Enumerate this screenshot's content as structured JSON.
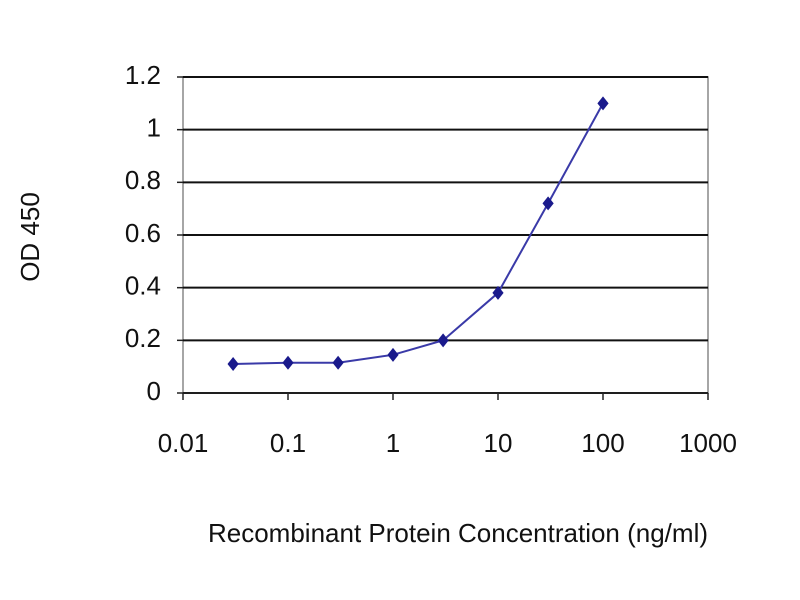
{
  "chart_data": {
    "type": "line",
    "xscale": "log",
    "grid": true,
    "x_label": "Recombinant Protein Concentration (ng/ml)",
    "y_label": "OD 450",
    "x": [
      0.03,
      0.1,
      0.3,
      1,
      3,
      10,
      30,
      100
    ],
    "series": [
      {
        "color": "#1a1a8c",
        "values": [
          0.11,
          0.115,
          0.115,
          0.145,
          0.2,
          0.38,
          0.72,
          1.1
        ]
      }
    ],
    "xlim": [
      0.01,
      1000
    ],
    "xticks": [
      0.01,
      0.1,
      1,
      10,
      100,
      1000
    ],
    "ylim": [
      0,
      1.2
    ],
    "yticks": [
      0,
      0.2,
      0.4,
      0.6,
      0.8,
      1,
      1.2
    ]
  }
}
